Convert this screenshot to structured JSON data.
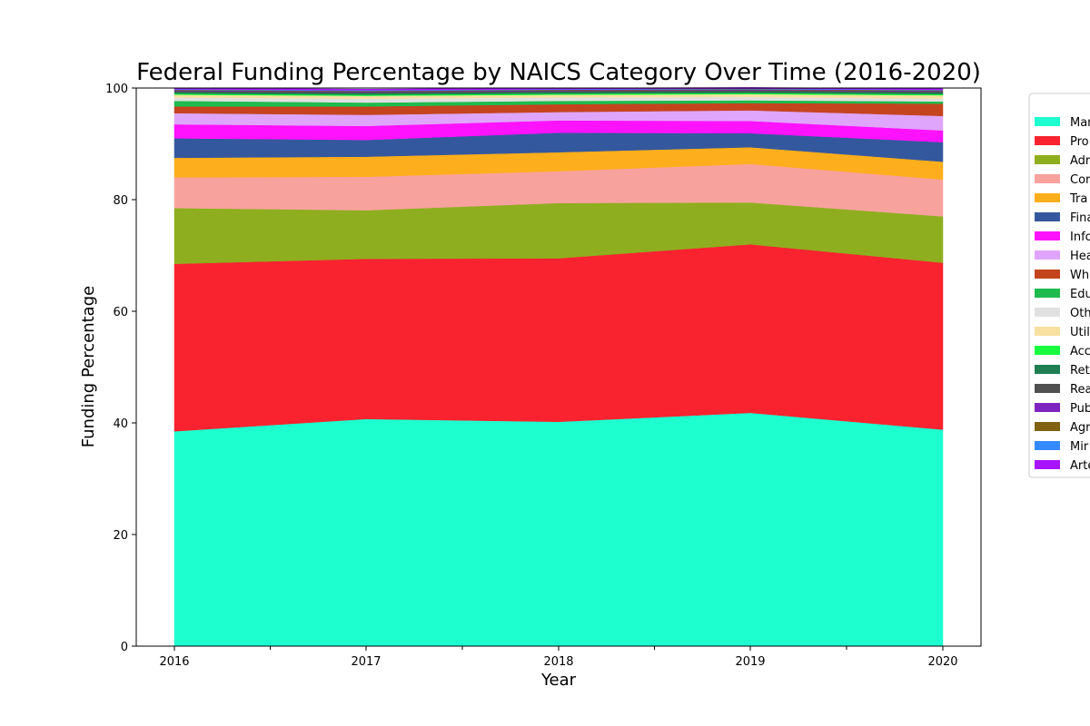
{
  "chart_data": {
    "type": "area",
    "stacked": true,
    "title": "Federal Funding Percentage by NAICS Category Over Time (2016-2020)",
    "xlabel": "Year",
    "ylabel": "Funding Percentage",
    "x": [
      "2016",
      "2017",
      "2018",
      "2019",
      "2020"
    ],
    "x_ticks": [
      "2016",
      "2017",
      "2018",
      "2019",
      "2020"
    ],
    "y_ticks": [
      "0",
      "20",
      "40",
      "60",
      "80",
      "100"
    ],
    "ylim": [
      0,
      100
    ],
    "grid": false,
    "legend_position": "right (clipped)",
    "series": [
      {
        "name": "Mar",
        "color": "#1effcf",
        "values": [
          38.5,
          40.7,
          40.2,
          41.8,
          38.8
        ]
      },
      {
        "name": "Pro",
        "color": "#f8232f",
        "values": [
          30.0,
          28.7,
          29.3,
          30.2,
          29.9
        ]
      },
      {
        "name": "Adr",
        "color": "#8fae1f",
        "values": [
          10.0,
          8.7,
          9.9,
          7.5,
          8.3
        ]
      },
      {
        "name": "Cor",
        "color": "#f8a29e",
        "values": [
          5.5,
          6.0,
          5.7,
          6.9,
          6.6
        ]
      },
      {
        "name": "Tra",
        "color": "#fdae1c",
        "values": [
          3.5,
          3.6,
          3.4,
          3.0,
          3.2
        ]
      },
      {
        "name": "Fina",
        "color": "#34589d",
        "values": [
          3.5,
          3.0,
          3.5,
          2.5,
          3.5
        ]
      },
      {
        "name": "Info",
        "color": "#ff12fd",
        "values": [
          2.5,
          2.5,
          2.2,
          2.2,
          2.1
        ]
      },
      {
        "name": "Hea",
        "color": "#dfa5fd",
        "values": [
          2.0,
          2.0,
          1.5,
          1.9,
          2.6
        ]
      },
      {
        "name": "Wh",
        "color": "#c4441e",
        "values": [
          1.2,
          1.5,
          1.4,
          1.3,
          2.2
        ]
      },
      {
        "name": "Edu",
        "color": "#1fbb4e",
        "values": [
          1.0,
          0.7,
          0.6,
          0.5,
          0.4
        ]
      },
      {
        "name": "Oth",
        "color": "#e0e0e0",
        "values": [
          0.6,
          0.7,
          0.6,
          0.6,
          0.5
        ]
      },
      {
        "name": "Util",
        "color": "#f7e0a0",
        "values": [
          0.5,
          0.5,
          0.5,
          0.5,
          0.6
        ]
      },
      {
        "name": "Acc",
        "color": "#18fb3f",
        "values": [
          0.2,
          0.2,
          0.2,
          0.2,
          0.2
        ]
      },
      {
        "name": "Ret",
        "color": "#1f7f53",
        "values": [
          0.3,
          0.3,
          0.3,
          0.3,
          0.3
        ]
      },
      {
        "name": "Rea",
        "color": "#505050",
        "values": [
          0.2,
          0.2,
          0.2,
          0.2,
          0.2
        ]
      },
      {
        "name": "Pub",
        "color": "#7f23c0",
        "values": [
          0.1,
          0.1,
          0.1,
          0.1,
          0.1
        ]
      },
      {
        "name": "Agr",
        "color": "#7f6212",
        "values": [
          0.1,
          0.1,
          0.1,
          0.1,
          0.1
        ]
      },
      {
        "name": "Mir",
        "color": "#348bff",
        "values": [
          0.1,
          0.1,
          0.1,
          0.1,
          0.1
        ]
      },
      {
        "name": "Arte",
        "color": "#a714fd",
        "values": [
          0.2,
          0.2,
          0.2,
          0.2,
          0.2
        ]
      }
    ]
  }
}
